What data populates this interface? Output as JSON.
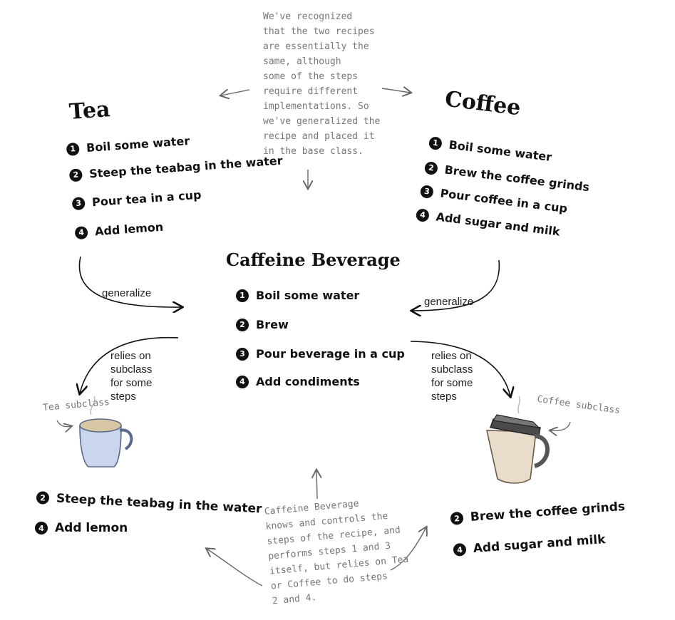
{
  "note_top": "We've recognized\nthat the two recipes\nare essentially the\nsame, although\nsome of the steps\nrequire different\nimplementations. So\nwe've generalized the\nrecipe and placed it\nin the base class.",
  "tea": {
    "title": "Tea",
    "steps": [
      {
        "num": "1",
        "text": "Boil some water"
      },
      {
        "num": "2",
        "text": "Steep the teabag in the water"
      },
      {
        "num": "3",
        "text": "Pour tea in a cup"
      },
      {
        "num": "4",
        "text": "Add lemon"
      }
    ]
  },
  "coffee": {
    "title": "Coffee",
    "steps": [
      {
        "num": "1",
        "text": "Boil some water"
      },
      {
        "num": "2",
        "text": "Brew the coffee grinds"
      },
      {
        "num": "3",
        "text": "Pour coffee in a cup"
      },
      {
        "num": "4",
        "text": "Add sugar and milk"
      }
    ]
  },
  "caffeine": {
    "title": "Caffeine Beverage",
    "steps": [
      {
        "num": "1",
        "text": "Boil some water"
      },
      {
        "num": "2",
        "text": "Brew"
      },
      {
        "num": "3",
        "text": "Pour beverage in a cup"
      },
      {
        "num": "4",
        "text": "Add condiments"
      }
    ]
  },
  "labels": {
    "generalize": "generalize",
    "relies_on": "relies on\nsubclass\nfor some\nsteps",
    "tea_subclass": "Tea subclass",
    "coffee_subclass": "Coffee subclass"
  },
  "tea_sub_steps": [
    {
      "num": "2",
      "text": "Steep the teabag in the water"
    },
    {
      "num": "4",
      "text": "Add lemon"
    }
  ],
  "coffee_sub_steps": [
    {
      "num": "2",
      "text": "Brew the coffee grinds"
    },
    {
      "num": "4",
      "text": "Add sugar and milk"
    }
  ],
  "note_bottom": "Caffeine Beverage\nknows and controls the\nsteps of the recipe, and\nperforms steps 1 and 3\nitself, but relies on Tea\nor Coffee to do steps\n2 and 4.",
  "icons": [
    "tea-mug-icon",
    "coffee-travel-mug-icon",
    "arrow-icon"
  ],
  "colors": {
    "ink": "#111111",
    "note_gray": "#777777",
    "mug_blue": "#c9d6ee",
    "mug_tan": "#e9dccb"
  }
}
